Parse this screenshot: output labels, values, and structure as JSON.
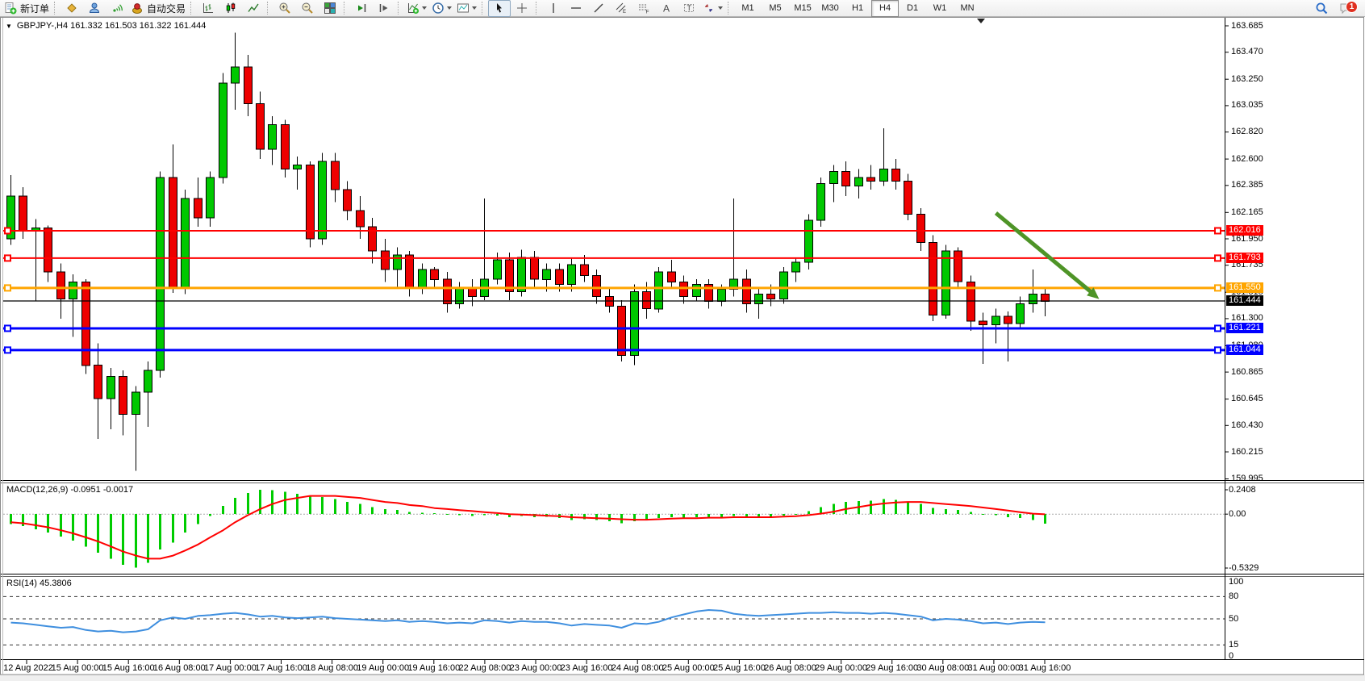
{
  "toolbar": {
    "new_order_label": "新订单",
    "autotrading_label": "自动交易",
    "timeframes": [
      "M1",
      "M5",
      "M15",
      "M30",
      "H1",
      "H4",
      "D1",
      "W1",
      "MN"
    ],
    "active_timeframe": "H4",
    "notification_count": "1"
  },
  "chart": {
    "collapse_glyph": "▼",
    "title": "GBPJPY-,H4  161.332 161.503 161.322 161.444",
    "symbol": "GBPJPY-",
    "timeframe": "H4",
    "ohlc": {
      "open": "161.332",
      "high": "161.503",
      "low": "161.322",
      "close": "161.444"
    }
  },
  "indicators": {
    "macd": {
      "label": "MACD(12,26,9) -0.0951 -0.0017",
      "ticks": [
        "0.2408",
        "0.00",
        "-0.5329"
      ]
    },
    "rsi": {
      "label": "RSI(14) 45.3806",
      "ticks": [
        "100",
        "80",
        "50",
        "15",
        "0"
      ]
    }
  },
  "chart_data": {
    "type": "candlestick",
    "symbol": "GBPJPY-",
    "timeframe": "H4",
    "ylim": [
      159.995,
      163.685
    ],
    "colors": {
      "up": "#00c800",
      "down": "#ee0000",
      "wick": "#000000",
      "macd_histogram": "#00cc00",
      "macd_signal": "#ff0000",
      "rsi_line": "#3f8fdf",
      "arrow": "#4e9427"
    },
    "price_axis_ticks": [
      "163.685",
      "163.470",
      "163.250",
      "163.035",
      "162.820",
      "162.600",
      "162.385",
      "162.165",
      "161.950",
      "161.735",
      "161.515",
      "161.300",
      "161.080",
      "160.865",
      "160.645",
      "160.430",
      "160.215",
      "159.995"
    ],
    "horizontal_lines": [
      {
        "price": 162.016,
        "label": "162.016",
        "color": "#ff0000",
        "width": 2
      },
      {
        "price": 161.793,
        "label": "161.793",
        "color": "#ff0000",
        "width": 2
      },
      {
        "price": 161.55,
        "label": "161.550",
        "color": "#ffa500",
        "width": 3
      },
      {
        "price": 161.221,
        "label": "161.221",
        "color": "#0000ff",
        "width": 3
      },
      {
        "price": 161.044,
        "label": "161.044",
        "color": "#0000ff",
        "width": 3
      }
    ],
    "current_price": {
      "value": 161.444,
      "label": "161.444",
      "color": "#000000"
    },
    "time_axis_labels": [
      "12 Aug 2022",
      "15 Aug 00:00",
      "15 Aug 16:00",
      "16 Aug 08:00",
      "17 Aug 00:00",
      "17 Aug 16:00",
      "18 Aug 08:00",
      "19 Aug 00:00",
      "19 Aug 16:00",
      "22 Aug 08:00",
      "23 Aug 00:00",
      "23 Aug 16:00",
      "24 Aug 08:00",
      "25 Aug 00:00",
      "25 Aug 16:00",
      "26 Aug 08:00",
      "29 Aug 00:00",
      "29 Aug 16:00",
      "30 Aug 08:00",
      "31 Aug 00:00",
      "31 Aug 16:00"
    ],
    "trend_arrow": {
      "from": {
        "bar": 79,
        "price": 162.16
      },
      "to": {
        "bar": 87.3,
        "price": 161.46
      }
    },
    "candles": [
      [
        161.95,
        162.47,
        161.9,
        162.3
      ],
      [
        162.3,
        162.37,
        161.95,
        162.02
      ],
      [
        162.02,
        162.11,
        161.44,
        162.04
      ],
      [
        162.04,
        162.06,
        161.6,
        161.68
      ],
      [
        161.68,
        161.75,
        161.3,
        161.46
      ],
      [
        161.46,
        161.66,
        161.15,
        161.6
      ],
      [
        161.6,
        161.62,
        160.85,
        160.92
      ],
      [
        160.92,
        161.1,
        160.32,
        160.65
      ],
      [
        160.65,
        160.9,
        160.4,
        160.83
      ],
      [
        160.83,
        160.88,
        160.35,
        160.52
      ],
      [
        160.52,
        160.75,
        160.06,
        160.7
      ],
      [
        160.7,
        160.95,
        160.42,
        160.88
      ],
      [
        160.88,
        162.5,
        160.82,
        162.45
      ],
      [
        162.45,
        162.72,
        161.51,
        161.55
      ],
      [
        161.55,
        162.35,
        161.5,
        162.28
      ],
      [
        162.28,
        162.45,
        162.05,
        162.12
      ],
      [
        162.12,
        162.5,
        162.05,
        162.45
      ],
      [
        162.45,
        163.3,
        162.4,
        163.22
      ],
      [
        163.22,
        163.63,
        163.0,
        163.35
      ],
      [
        163.35,
        163.45,
        162.95,
        163.05
      ],
      [
        163.05,
        163.15,
        162.6,
        162.68
      ],
      [
        162.68,
        162.95,
        162.55,
        162.88
      ],
      [
        162.88,
        162.92,
        162.45,
        162.52
      ],
      [
        162.52,
        162.62,
        162.35,
        162.55
      ],
      [
        162.55,
        162.58,
        161.88,
        161.95
      ],
      [
        161.95,
        162.65,
        161.9,
        162.58
      ],
      [
        162.58,
        162.65,
        162.25,
        162.35
      ],
      [
        162.35,
        162.42,
        162.1,
        162.18
      ],
      [
        162.18,
        162.3,
        161.95,
        162.05
      ],
      [
        162.05,
        162.12,
        161.75,
        161.85
      ],
      [
        161.85,
        161.95,
        161.6,
        161.7
      ],
      [
        161.7,
        161.88,
        161.55,
        161.82
      ],
      [
        161.82,
        161.85,
        161.48,
        161.55
      ],
      [
        161.55,
        161.75,
        161.5,
        161.7
      ],
      [
        161.7,
        161.72,
        161.55,
        161.62
      ],
      [
        161.62,
        161.68,
        161.35,
        161.42
      ],
      [
        161.42,
        161.6,
        161.38,
        161.55
      ],
      [
        161.55,
        161.62,
        161.4,
        161.48
      ],
      [
        161.48,
        162.28,
        161.45,
        161.62
      ],
      [
        161.62,
        161.84,
        161.58,
        161.78
      ],
      [
        161.78,
        161.84,
        161.45,
        161.52
      ],
      [
        161.52,
        161.86,
        161.48,
        161.8
      ],
      [
        161.8,
        161.85,
        161.55,
        161.62
      ],
      [
        161.62,
        161.75,
        161.52,
        161.7
      ],
      [
        161.7,
        161.75,
        161.52,
        161.58
      ],
      [
        161.58,
        161.8,
        161.52,
        161.74
      ],
      [
        161.74,
        161.82,
        161.6,
        161.65
      ],
      [
        161.65,
        161.7,
        161.42,
        161.48
      ],
      [
        161.48,
        161.55,
        161.35,
        161.4
      ],
      [
        161.4,
        161.45,
        160.95,
        161.0
      ],
      [
        161.0,
        161.58,
        160.92,
        161.52
      ],
      [
        161.52,
        161.6,
        161.3,
        161.38
      ],
      [
        161.38,
        161.72,
        161.35,
        161.68
      ],
      [
        161.68,
        161.78,
        161.55,
        161.6
      ],
      [
        161.6,
        161.65,
        161.42,
        161.48
      ],
      [
        161.48,
        161.62,
        161.44,
        161.58
      ],
      [
        161.58,
        161.62,
        161.38,
        161.44
      ],
      [
        161.44,
        161.58,
        161.4,
        161.54
      ],
      [
        161.54,
        162.28,
        161.48,
        161.62
      ],
      [
        161.62,
        161.7,
        161.35,
        161.42
      ],
      [
        161.42,
        161.55,
        161.3,
        161.5
      ],
      [
        161.5,
        161.58,
        161.4,
        161.46
      ],
      [
        161.46,
        161.72,
        161.42,
        161.68
      ],
      [
        161.68,
        161.8,
        161.6,
        161.76
      ],
      [
        161.76,
        162.15,
        161.7,
        162.1
      ],
      [
        162.1,
        162.45,
        162.05,
        162.4
      ],
      [
        162.4,
        162.55,
        162.25,
        162.5
      ],
      [
        162.5,
        162.58,
        162.3,
        162.38
      ],
      [
        162.38,
        162.52,
        162.28,
        162.45
      ],
      [
        162.45,
        162.55,
        162.35,
        162.42
      ],
      [
        162.42,
        162.85,
        162.38,
        162.52
      ],
      [
        162.52,
        162.6,
        162.35,
        162.42
      ],
      [
        162.42,
        162.48,
        162.1,
        162.15
      ],
      [
        162.15,
        162.2,
        161.85,
        161.92
      ],
      [
        161.92,
        161.98,
        161.28,
        161.33
      ],
      [
        161.33,
        161.9,
        161.3,
        161.85
      ],
      [
        161.85,
        161.88,
        161.55,
        161.6
      ],
      [
        161.6,
        161.65,
        161.2,
        161.28
      ],
      [
        161.28,
        161.35,
        160.93,
        161.25
      ],
      [
        161.25,
        161.38,
        161.1,
        161.32
      ],
      [
        161.32,
        161.36,
        160.95,
        161.26
      ],
      [
        161.26,
        161.48,
        161.22,
        161.42
      ],
      [
        161.42,
        161.7,
        161.35,
        161.5
      ],
      [
        161.5,
        161.55,
        161.32,
        161.44
      ]
    ],
    "macd": {
      "scale": {
        "max": 0.2408,
        "min": -0.5329
      },
      "histogram": [
        -0.1,
        -0.12,
        -0.15,
        -0.18,
        -0.22,
        -0.26,
        -0.32,
        -0.38,
        -0.44,
        -0.5,
        -0.53,
        -0.48,
        -0.35,
        -0.28,
        -0.18,
        -0.1,
        -0.02,
        0.08,
        0.16,
        0.21,
        0.24,
        0.235,
        0.22,
        0.2,
        0.18,
        0.17,
        0.15,
        0.12,
        0.1,
        0.07,
        0.05,
        0.04,
        0.02,
        0.015,
        0.01,
        0.0,
        -0.01,
        -0.02,
        -0.01,
        -0.015,
        -0.03,
        -0.02,
        -0.03,
        -0.025,
        -0.04,
        -0.06,
        -0.05,
        -0.06,
        -0.07,
        -0.09,
        -0.07,
        -0.06,
        -0.04,
        -0.03,
        -0.035,
        -0.03,
        -0.035,
        -0.03,
        -0.02,
        -0.03,
        -0.03,
        -0.025,
        -0.015,
        0.0,
        0.03,
        0.07,
        0.1,
        0.12,
        0.13,
        0.135,
        0.15,
        0.14,
        0.12,
        0.1,
        0.06,
        0.05,
        0.04,
        0.02,
        0.0,
        -0.01,
        -0.03,
        -0.04,
        -0.06,
        -0.0951
      ],
      "signal": [
        -0.08,
        -0.09,
        -0.11,
        -0.13,
        -0.16,
        -0.19,
        -0.23,
        -0.27,
        -0.32,
        -0.37,
        -0.41,
        -0.44,
        -0.44,
        -0.41,
        -0.36,
        -0.3,
        -0.23,
        -0.16,
        -0.08,
        -0.01,
        0.05,
        0.1,
        0.14,
        0.16,
        0.18,
        0.18,
        0.18,
        0.17,
        0.16,
        0.14,
        0.12,
        0.11,
        0.09,
        0.08,
        0.06,
        0.05,
        0.04,
        0.03,
        0.02,
        0.01,
        0.0,
        -0.005,
        -0.01,
        -0.015,
        -0.02,
        -0.03,
        -0.035,
        -0.04,
        -0.045,
        -0.05,
        -0.055,
        -0.055,
        -0.05,
        -0.045,
        -0.04,
        -0.04,
        -0.035,
        -0.035,
        -0.03,
        -0.03,
        -0.03,
        -0.03,
        -0.025,
        -0.02,
        -0.01,
        0.005,
        0.025,
        0.05,
        0.07,
        0.09,
        0.105,
        0.115,
        0.12,
        0.12,
        0.11,
        0.1,
        0.09,
        0.08,
        0.065,
        0.05,
        0.035,
        0.02,
        0.005,
        -0.0017
      ]
    },
    "rsi": {
      "levels": [
        80,
        50,
        15
      ],
      "values": [
        45,
        44,
        42,
        40,
        38,
        39,
        35,
        33,
        34,
        32,
        33,
        36,
        48,
        52,
        50,
        54,
        55,
        57,
        58,
        56,
        53,
        54,
        52,
        51,
        52,
        53,
        51,
        50,
        49,
        48,
        47,
        48,
        46,
        47,
        46,
        44,
        45,
        44,
        48,
        47,
        45,
        47,
        46,
        46,
        44,
        41,
        43,
        42,
        41,
        38,
        44,
        43,
        46,
        52,
        56,
        60,
        62,
        61,
        57,
        55,
        54,
        55,
        56,
        57,
        58,
        58,
        59,
        58,
        58,
        57,
        58,
        57,
        55,
        53,
        48,
        50,
        49,
        47,
        44,
        45,
        43,
        45,
        46,
        45.38
      ]
    }
  }
}
